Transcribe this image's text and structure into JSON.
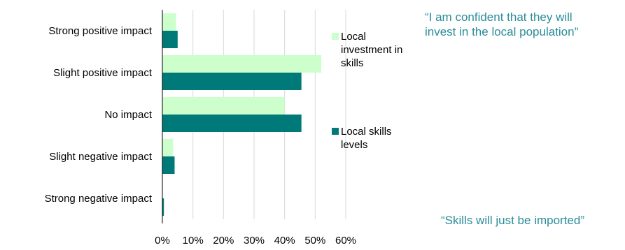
{
  "chart_data": {
    "type": "bar",
    "orientation": "horizontal",
    "categories": [
      "Strong positive impact",
      "Slight positive impact",
      "No impact",
      "Slight negative impact",
      "Strong negative impact"
    ],
    "series": [
      {
        "name": "Local investment in skills",
        "color": "#ccffcc",
        "values": [
          4.5,
          52,
          40,
          3.5,
          0
        ]
      },
      {
        "name": "Local skills levels",
        "color": "#007a78",
        "values": [
          5,
          45.5,
          45.5,
          4,
          0.5
        ]
      }
    ],
    "xlim": [
      0,
      60
    ],
    "xticks": [
      "0%",
      "10%",
      "20%",
      "30%",
      "40%",
      "50%",
      "60%"
    ],
    "grid": "vertical",
    "legend": "right"
  },
  "quotes": {
    "top": "“I am confident that they will invest in the local population”",
    "bottom": "“Skills will just be imported”"
  },
  "colors": {
    "quote": "#2a8c99",
    "grid": "#d9d9d9"
  }
}
